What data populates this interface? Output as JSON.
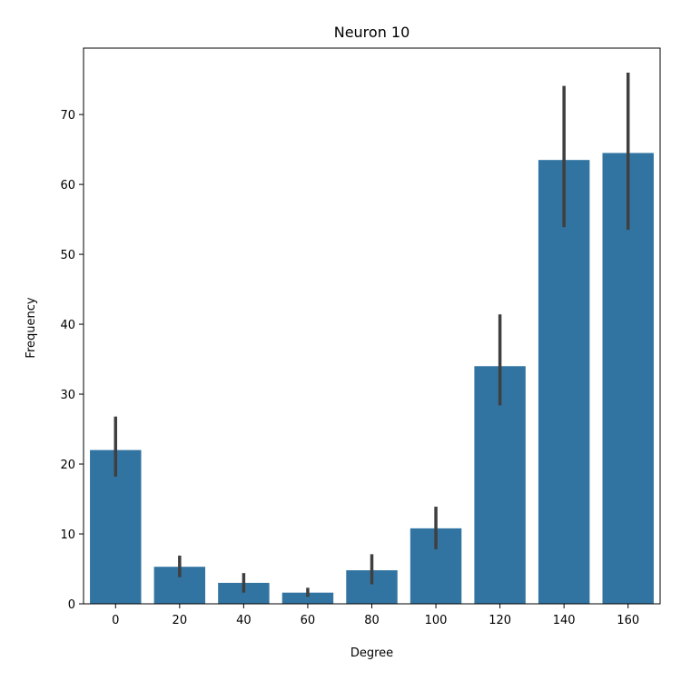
{
  "chart_data": {
    "type": "bar",
    "title": "Neuron 10",
    "xlabel": "Degree",
    "ylabel": "Frequency",
    "categories": [
      "0",
      "20",
      "40",
      "60",
      "80",
      "100",
      "120",
      "140",
      "160"
    ],
    "values": [
      22.0,
      5.3,
      3.0,
      1.6,
      4.8,
      10.8,
      34.0,
      63.5,
      64.5
    ],
    "error_low": [
      18.2,
      3.8,
      1.6,
      1.0,
      2.8,
      7.8,
      28.4,
      53.9,
      53.5
    ],
    "error_high": [
      26.8,
      6.9,
      4.4,
      2.3,
      7.1,
      13.9,
      41.4,
      74.1,
      76.0
    ],
    "yticks": [
      0,
      10,
      20,
      30,
      40,
      50,
      60,
      70
    ],
    "ylim": [
      0,
      79.5
    ],
    "grid": false,
    "bar_color": "#3274a1",
    "error_color": "#3f3f3f"
  }
}
